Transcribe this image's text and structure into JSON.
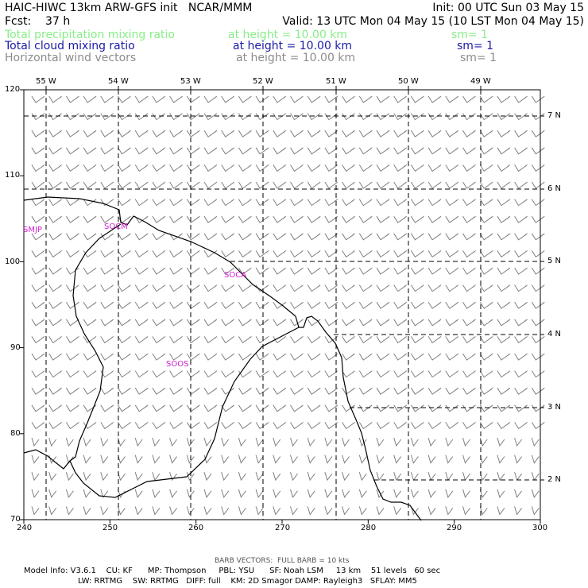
{
  "header": {
    "line1_left": "HAIC-HIWC 13km ARW-GFS init   NCAR/MMM",
    "line1_right": "Init: 00 UTC Sun 03 May 15",
    "line2_left": "Fcst:    37 h",
    "line2_right": "Valid: 13 UTC Mon 04 May 15 (10 LST Mon 04 May 15)",
    "fields": [
      {
        "name": "Total precipitation mixing ratio",
        "level": "at height = 10.00 km",
        "sm": "sm= 1",
        "color": "#88ee88"
      },
      {
        "name": "Total cloud mixing ratio",
        "level": "at height = 10.00 km",
        "sm": "sm= 1",
        "color": "#1a1aa8"
      },
      {
        "name": "Horizontal wind vectors",
        "level": "at height = 10.00 km",
        "sm": "sm= 1",
        "color": "#8c8c8c"
      }
    ]
  },
  "map": {
    "x_ticks": [
      "240",
      "250",
      "260",
      "270",
      "280",
      "290",
      "300"
    ],
    "y_ticks": [
      "120",
      "110",
      "100",
      "90",
      "80",
      "70"
    ],
    "lon_labels": [
      "55 W",
      "54 W",
      "53 W",
      "52 W",
      "51 W",
      "50 W",
      "49 W"
    ],
    "lat_labels": [
      "7 N",
      "6 N",
      "5 N",
      "4 N",
      "3 N",
      "2 N"
    ],
    "stations": [
      {
        "id": "SMJP"
      },
      {
        "id": "SOCM"
      },
      {
        "id": "SOCA"
      },
      {
        "id": "SOOS"
      }
    ],
    "station_color": "#d020d0",
    "barb_color": "#808080",
    "wind_barbs": "full barb = 10 kts"
  },
  "footer": {
    "barb_note": "BARB VECTORS:  FULL BARB = 10 kts",
    "model_line1": "Model Info: V3.6.1    CU: KF      MP: Thompson     PBL: YSU      SF: Noah LSM     13 km    51 levels   60 sec",
    "model_line2": "LW: RRTMG    SW: RRTMG   DIFF: full    KM: 2D Smagor DAMP: Rayleigh3   SFLAY: MM5"
  }
}
